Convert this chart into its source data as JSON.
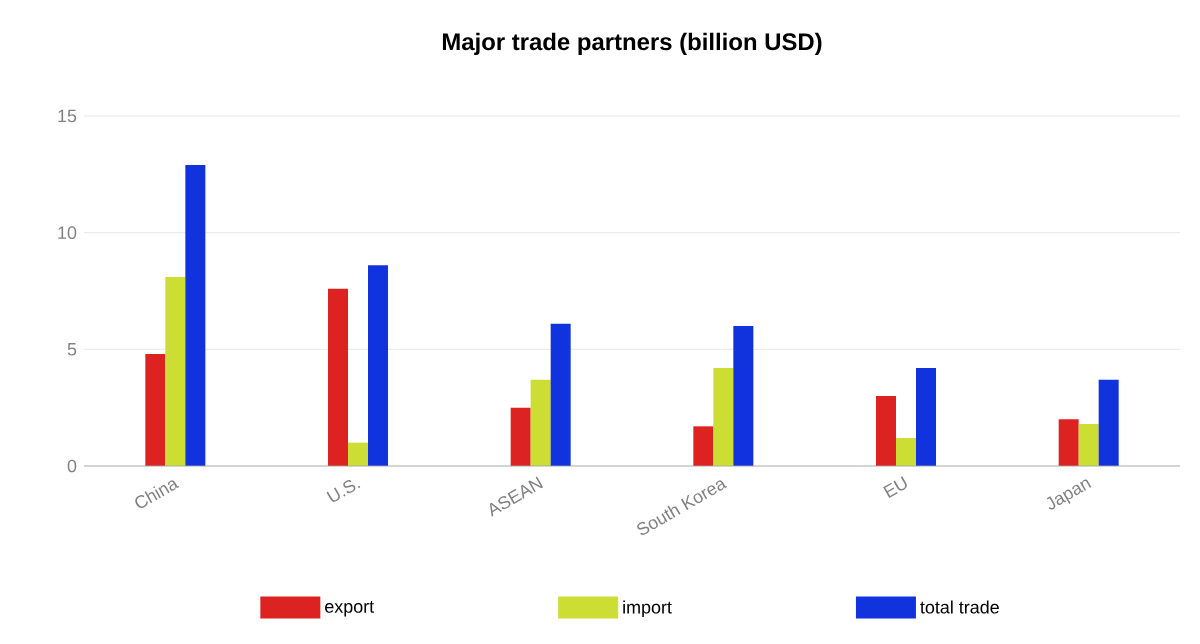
{
  "chart_data": {
    "type": "bar",
    "title": "Major trade partners (billion USD)",
    "categories": [
      "China",
      "U.S.",
      "ASEAN",
      "South Korea",
      "EU",
      "Japan"
    ],
    "series": [
      {
        "name": "export",
        "color": "#dd2222",
        "values": [
          4.8,
          7.6,
          2.5,
          1.7,
          3.0,
          2.0
        ]
      },
      {
        "name": "import",
        "color": "#ccdd33",
        "values": [
          8.1,
          1.0,
          3.7,
          4.2,
          1.2,
          1.8
        ]
      },
      {
        "name": "total trade",
        "color": "#1133dd",
        "values": [
          12.9,
          8.6,
          6.1,
          6.0,
          4.2,
          3.7
        ]
      }
    ],
    "ylim": [
      0,
      15
    ],
    "yticks": [
      0,
      5,
      10,
      15
    ],
    "grid": "y",
    "legend": "bottom"
  }
}
